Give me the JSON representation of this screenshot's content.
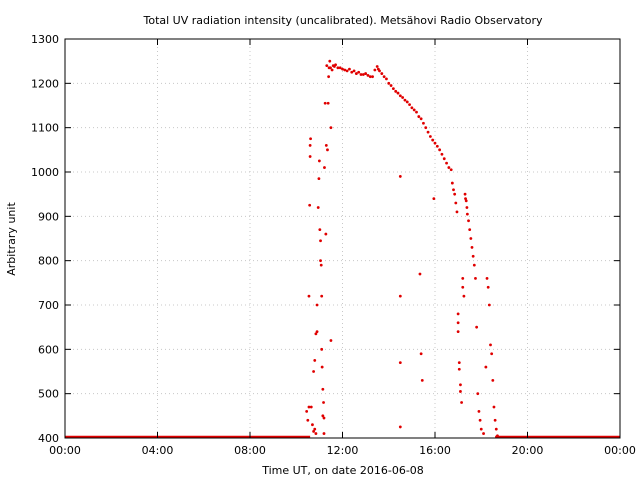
{
  "chart_data": {
    "type": "scatter",
    "title": "Total UV radiation intensity (uncalibrated). Metsähovi Radio Observatory",
    "xlabel": "Time UT, on date 2016-06-08",
    "ylabel": "Arbitrary unit",
    "xlim": [
      0,
      24
    ],
    "ylim": [
      400,
      1300
    ],
    "grid": true,
    "x_ticks": [
      {
        "value": 0,
        "label": "00:00"
      },
      {
        "value": 4,
        "label": "04:00"
      },
      {
        "value": 8,
        "label": "08:00"
      },
      {
        "value": 12,
        "label": "12:00"
      },
      {
        "value": 16,
        "label": "16:00"
      },
      {
        "value": 20,
        "label": "20:00"
      },
      {
        "value": 24,
        "label": "00:00"
      }
    ],
    "y_ticks": [
      {
        "value": 400,
        "label": "400"
      },
      {
        "value": 500,
        "label": "500"
      },
      {
        "value": 600,
        "label": "600"
      },
      {
        "value": 700,
        "label": "700"
      },
      {
        "value": 800,
        "label": "800"
      },
      {
        "value": 900,
        "label": "900"
      },
      {
        "value": 1000,
        "label": "1000"
      },
      {
        "value": 1100,
        "label": "1100"
      },
      {
        "value": 1200,
        "label": "1200"
      },
      {
        "value": 1300,
        "label": "1300"
      }
    ],
    "series": [
      {
        "color": "#e00000",
        "baseline": {
          "y": 400,
          "x_ranges": [
            [
              0,
              10.6
            ],
            [
              18.6,
              24
            ]
          ]
        },
        "points": [
          [
            10.45,
            460
          ],
          [
            10.5,
            440
          ],
          [
            10.55,
            470
          ],
          [
            10.55,
            720
          ],
          [
            10.58,
            925
          ],
          [
            10.6,
            1035
          ],
          [
            10.6,
            1060
          ],
          [
            10.62,
            1075
          ],
          [
            10.65,
            470
          ],
          [
            10.7,
            430
          ],
          [
            10.75,
            415
          ],
          [
            10.75,
            550
          ],
          [
            10.8,
            575
          ],
          [
            10.8,
            420
          ],
          [
            10.85,
            635
          ],
          [
            10.85,
            410
          ],
          [
            10.9,
            640
          ],
          [
            10.9,
            700
          ],
          [
            10.95,
            920
          ],
          [
            10.98,
            985
          ],
          [
            11.0,
            1025
          ],
          [
            11.02,
            870
          ],
          [
            11.05,
            845
          ],
          [
            11.05,
            800
          ],
          [
            11.08,
            790
          ],
          [
            11.1,
            720
          ],
          [
            11.1,
            600
          ],
          [
            11.12,
            560
          ],
          [
            11.15,
            450
          ],
          [
            11.15,
            510
          ],
          [
            11.18,
            480
          ],
          [
            11.2,
            445
          ],
          [
            11.2,
            410
          ],
          [
            11.22,
            1010
          ],
          [
            11.25,
            1155
          ],
          [
            11.28,
            860
          ],
          [
            11.3,
            1060
          ],
          [
            11.32,
            1240
          ],
          [
            11.35,
            1050
          ],
          [
            11.38,
            1155
          ],
          [
            11.4,
            1215
          ],
          [
            11.42,
            1235
          ],
          [
            11.45,
            1250
          ],
          [
            11.48,
            1235
          ],
          [
            11.5,
            1100
          ],
          [
            11.5,
            620
          ],
          [
            11.55,
            1230
          ],
          [
            11.6,
            1240
          ],
          [
            11.65,
            1238
          ],
          [
            11.7,
            1242
          ],
          [
            11.8,
            1235
          ],
          [
            11.9,
            1235
          ],
          [
            12.0,
            1232
          ],
          [
            12.1,
            1230
          ],
          [
            12.2,
            1228
          ],
          [
            12.3,
            1232
          ],
          [
            12.4,
            1225
          ],
          [
            12.5,
            1228
          ],
          [
            12.6,
            1222
          ],
          [
            12.7,
            1225
          ],
          [
            12.8,
            1220
          ],
          [
            12.9,
            1220
          ],
          [
            13.0,
            1222
          ],
          [
            13.1,
            1218
          ],
          [
            13.2,
            1215
          ],
          [
            13.3,
            1215
          ],
          [
            13.4,
            1230
          ],
          [
            13.5,
            1238
          ],
          [
            13.55,
            1232
          ],
          [
            13.6,
            1228
          ],
          [
            13.7,
            1222
          ],
          [
            13.8,
            1215
          ],
          [
            13.9,
            1210
          ],
          [
            14.0,
            1200
          ],
          [
            14.1,
            1195
          ],
          [
            14.2,
            1188
          ],
          [
            14.3,
            1182
          ],
          [
            14.4,
            1178
          ],
          [
            14.5,
            1172
          ],
          [
            14.5,
            990
          ],
          [
            14.5,
            720
          ],
          [
            14.5,
            570
          ],
          [
            14.5,
            425
          ],
          [
            14.6,
            1168
          ],
          [
            14.7,
            1162
          ],
          [
            14.8,
            1158
          ],
          [
            14.9,
            1152
          ],
          [
            15.0,
            1145
          ],
          [
            15.1,
            1140
          ],
          [
            15.2,
            1135
          ],
          [
            15.3,
            1125
          ],
          [
            15.35,
            770
          ],
          [
            15.4,
            1120
          ],
          [
            15.4,
            590
          ],
          [
            15.45,
            530
          ],
          [
            15.5,
            1110
          ],
          [
            15.6,
            1100
          ],
          [
            15.7,
            1090
          ],
          [
            15.8,
            1080
          ],
          [
            15.9,
            1072
          ],
          [
            15.95,
            940
          ],
          [
            16.0,
            1065
          ],
          [
            16.1,
            1058
          ],
          [
            16.2,
            1050
          ],
          [
            16.3,
            1040
          ],
          [
            16.4,
            1030
          ],
          [
            16.5,
            1020
          ],
          [
            16.6,
            1010
          ],
          [
            16.7,
            1005
          ],
          [
            16.75,
            975
          ],
          [
            16.8,
            960
          ],
          [
            16.85,
            950
          ],
          [
            16.9,
            930
          ],
          [
            16.95,
            910
          ],
          [
            17.0,
            680
          ],
          [
            17.0,
            660
          ],
          [
            17.0,
            640
          ],
          [
            17.05,
            570
          ],
          [
            17.05,
            555
          ],
          [
            17.1,
            520
          ],
          [
            17.1,
            505
          ],
          [
            17.15,
            480
          ],
          [
            17.2,
            760
          ],
          [
            17.2,
            740
          ],
          [
            17.25,
            720
          ],
          [
            17.3,
            950
          ],
          [
            17.32,
            940
          ],
          [
            17.35,
            935
          ],
          [
            17.38,
            920
          ],
          [
            17.4,
            905
          ],
          [
            17.45,
            890
          ],
          [
            17.5,
            870
          ],
          [
            17.55,
            850
          ],
          [
            17.6,
            830
          ],
          [
            17.65,
            810
          ],
          [
            17.7,
            790
          ],
          [
            17.75,
            760
          ],
          [
            17.8,
            650
          ],
          [
            17.85,
            500
          ],
          [
            17.9,
            460
          ],
          [
            17.95,
            440
          ],
          [
            18.0,
            420
          ],
          [
            18.1,
            410
          ],
          [
            18.2,
            560
          ],
          [
            18.25,
            760
          ],
          [
            18.3,
            740
          ],
          [
            18.35,
            700
          ],
          [
            18.4,
            610
          ],
          [
            18.45,
            590
          ],
          [
            18.5,
            530
          ],
          [
            18.55,
            470
          ],
          [
            18.6,
            440
          ],
          [
            18.65,
            420
          ],
          [
            18.7,
            405
          ]
        ]
      }
    ]
  }
}
